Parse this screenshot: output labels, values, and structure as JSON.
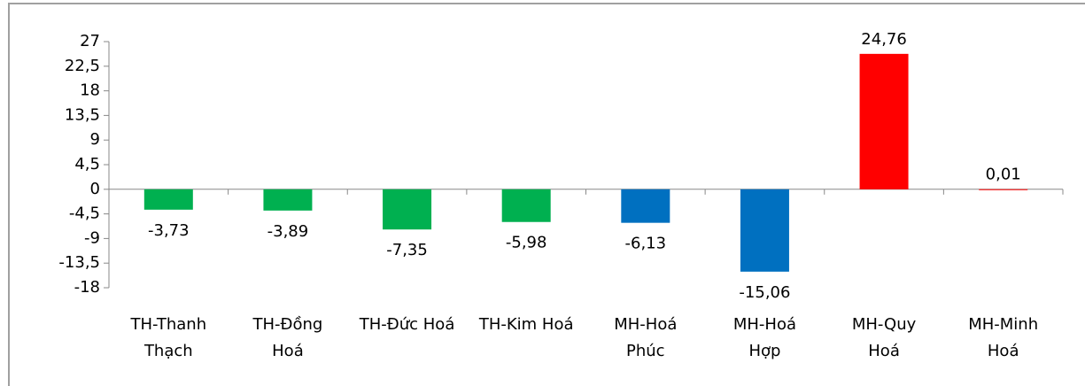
{
  "chart_data": {
    "type": "bar",
    "categories": [
      "TH-Thanh Thạch",
      "TH-Đồng Hoá",
      "TH-Đức Hoá",
      "TH-Kim Hoá",
      "MH-Hoá Phúc",
      "MH-Hoá Hợp",
      "MH-Quy Hoá",
      "MH-Minh Hoá"
    ],
    "values": [
      -3.73,
      -3.89,
      -7.35,
      -5.98,
      -6.13,
      -15.06,
      24.76,
      0.01
    ],
    "value_labels": [
      "-3,73",
      "-3,89",
      "-7,35",
      "-5,98",
      "-6,13",
      "-15,06",
      "24,76",
      "0,01"
    ],
    "colors": [
      "#00b050",
      "#00b050",
      "#00b050",
      "#00b050",
      "#0070c0",
      "#0070c0",
      "#ff0000",
      "#ff0000"
    ],
    "ylim": [
      -18,
      27
    ],
    "yticks": [
      27,
      {
        "value": 22.5,
        "label": "22,5"
      },
      18,
      {
        "value": 13.5,
        "label": "13,5"
      },
      9,
      {
        "value": 4.5,
        "label": "4,5"
      },
      0,
      {
        "value": -4.5,
        "label": "-4,5"
      },
      -9,
      {
        "value": -13.5,
        "label": "-13,5"
      },
      -18
    ],
    "grid": false
  }
}
